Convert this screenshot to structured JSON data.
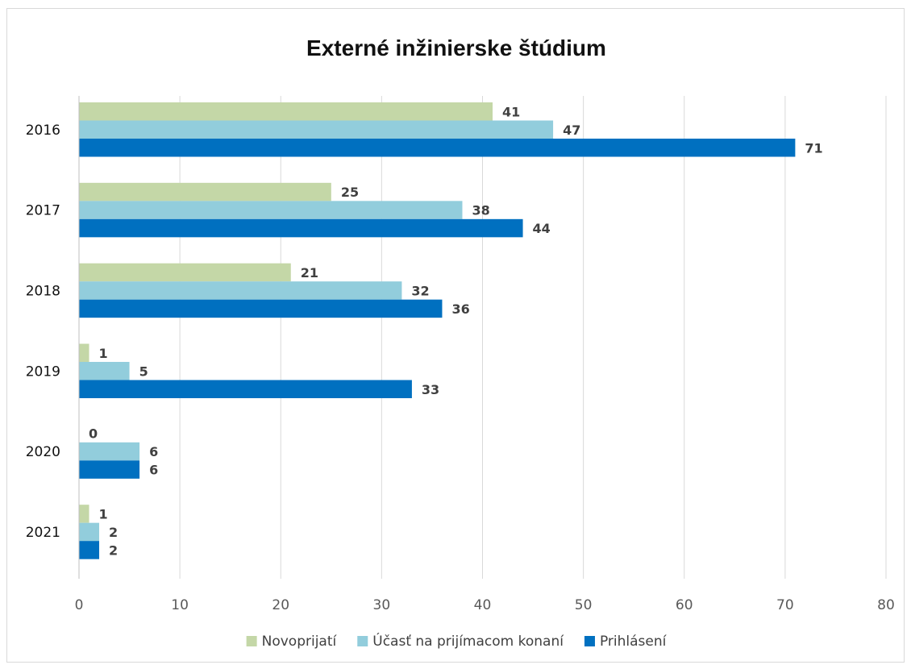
{
  "chart_data": {
    "type": "bar",
    "orientation": "horizontal",
    "title": "Externé inžinierske štúdium",
    "categories": [
      "2016",
      "2017",
      "2018",
      "2019",
      "2020",
      "2021"
    ],
    "series": [
      {
        "name": "Novoprijatí",
        "color": "#c4d7a7",
        "values": [
          41,
          25,
          21,
          1,
          0,
          1
        ]
      },
      {
        "name": "Účasť na prijímacom konaní",
        "color": "#92cddc",
        "values": [
          47,
          38,
          32,
          5,
          6,
          2
        ]
      },
      {
        "name": "Prihlásení",
        "color": "#0070c0",
        "values": [
          71,
          44,
          36,
          33,
          6,
          2
        ]
      }
    ],
    "xlim": [
      0,
      80
    ],
    "xticks": [
      "0",
      "10",
      "20",
      "30",
      "40",
      "50",
      "60",
      "70",
      "80"
    ],
    "grid": true,
    "legend_position": "bottom",
    "data_labels": true
  }
}
